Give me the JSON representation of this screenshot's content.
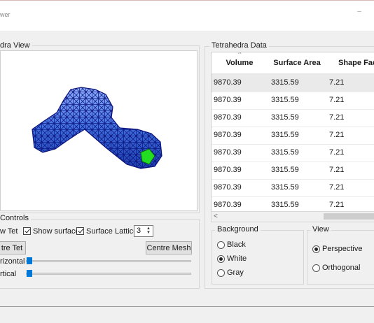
{
  "window": {
    "title": "wer",
    "minimize_glyph": "–"
  },
  "viewer": {
    "group_label": "dra View",
    "mesh_colors": {
      "fill": "#3f6fe0",
      "edge": "#0b127a",
      "highlight": "#22dd22"
    }
  },
  "tetrahedra": {
    "group_label": "Tetrahedra Data",
    "columns": [
      "Volume",
      "Surface Area",
      "Shape Facto"
    ],
    "sort_indicator": "^",
    "rows": [
      [
        "9870.39",
        "3315.59",
        "7.21"
      ],
      [
        "9870.39",
        "3315.59",
        "7.21"
      ],
      [
        "9870.39",
        "3315.59",
        "7.21"
      ],
      [
        "9870.39",
        "3315.59",
        "7.21"
      ],
      [
        "9870.39",
        "3315.59",
        "7.21"
      ],
      [
        "9870.39",
        "3315.59",
        "7.21"
      ],
      [
        "9870.39",
        "3315.59",
        "7.21"
      ],
      [
        "9870.39",
        "3315.59",
        "7.21"
      ]
    ],
    "scroll_left_glyph": "<"
  },
  "controls": {
    "group_label": "Controls",
    "show_tet_label": "w Tet",
    "show_surface_label": "Show surface",
    "show_surface_checked": true,
    "surface_lattice_label": "Surface Lattice",
    "surface_lattice_checked": true,
    "lattice_value": "3",
    "centre_tet_label": "tre Tet",
    "centre_mesh_label": "Centre Mesh",
    "horizontal_label": "rizontal",
    "vertical_label": "rtical",
    "horizontal_value": 0.0,
    "vertical_value": 0.0
  },
  "background": {
    "group_label": "Background",
    "options": [
      "Black",
      "White",
      "Gray"
    ],
    "selected": "White"
  },
  "view": {
    "group_label": "View",
    "options": [
      "Perspective",
      "Orthogonal"
    ],
    "selected": "Perspective"
  }
}
